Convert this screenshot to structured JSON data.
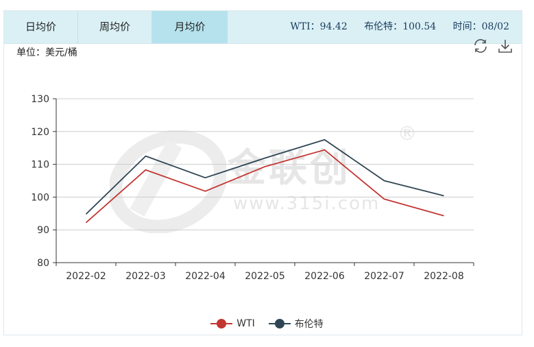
{
  "tabs": [
    {
      "label": "日均价",
      "active": false
    },
    {
      "label": "周均价",
      "active": false
    },
    {
      "label": "月均价",
      "active": true
    }
  ],
  "stats": {
    "wti_label": "WTI：",
    "wti_value": "94.42",
    "brent_label": "布伦特：",
    "brent_value": "100.54",
    "time_label": "时间：",
    "time_value": "08/02"
  },
  "unit_label": "单位：美元/桶",
  "toolbar": {
    "refresh_icon": "refresh-icon",
    "download_icon": "download-icon"
  },
  "watermark": {
    "text": "金联创",
    "url": "www.315i.com",
    "mark": "®"
  },
  "colors": {
    "wti": "#c23531",
    "brent": "#2f4554",
    "axis": "#333333",
    "grid": "#cccccc"
  },
  "chart_data": {
    "type": "line",
    "categories": [
      "2022-02",
      "2022-03",
      "2022-04",
      "2022-05",
      "2022-06",
      "2022-07",
      "2022-08"
    ],
    "ylim": [
      80,
      130
    ],
    "yticks": [
      80,
      90,
      100,
      110,
      120,
      130
    ],
    "grid": true,
    "legend_position": "bottom",
    "series": [
      {
        "name": "WTI",
        "values": [
          92.2,
          108.3,
          101.8,
          109.3,
          114.4,
          99.4,
          94.3
        ]
      },
      {
        "name": "布伦特",
        "values": [
          94.8,
          112.5,
          105.9,
          111.9,
          117.5,
          105.0,
          100.4
        ]
      }
    ]
  }
}
